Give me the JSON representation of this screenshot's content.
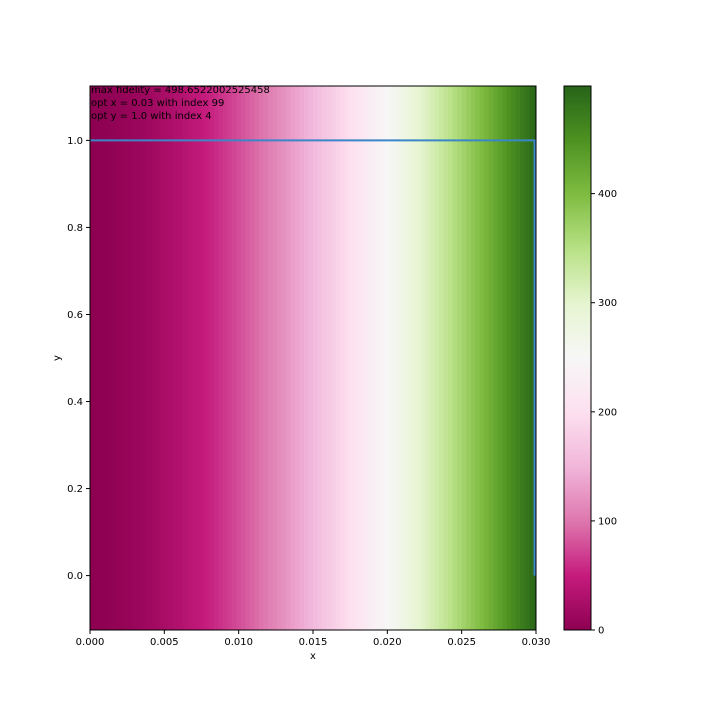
{
  "chart_data": {
    "type": "heatmap",
    "title": "",
    "xlabel": "x",
    "ylabel": "y",
    "xlim": [
      0.0,
      0.03
    ],
    "ylim": [
      -0.125,
      1.125
    ],
    "x_ticks": [
      "0.000",
      "0.005",
      "0.010",
      "0.015",
      "0.020",
      "0.025",
      "0.030"
    ],
    "y_ticks": [
      "0.0",
      "0.2",
      "0.4",
      "0.6",
      "0.8",
      "1.0"
    ],
    "x_tick_values": [
      0.0,
      0.005,
      0.01,
      0.015,
      0.02,
      0.025,
      0.03
    ],
    "y_tick_values": [
      0.0,
      0.2,
      0.4,
      0.6,
      0.8,
      1.0
    ],
    "y_rows": [
      0.0,
      0.25,
      0.5,
      0.75,
      1.0
    ],
    "x_count": 100,
    "x_range": [
      0.0,
      0.03
    ],
    "value_model": "value grows with x, approx 498.65 * (x / 0.03)^1.7",
    "max_value": 498.6522002525458,
    "colormap": "PiYG",
    "colorbar": {
      "range": [
        0,
        498.65
      ],
      "ticks": [
        "0",
        "100",
        "200",
        "300",
        "400"
      ],
      "tick_values": [
        0,
        100,
        200,
        300,
        400
      ]
    },
    "optimum_path": {
      "color": "#3a86c8",
      "points": [
        [
          0.0,
          1.0
        ],
        [
          0.0299,
          1.0
        ],
        [
          0.0299,
          0.0
        ]
      ]
    },
    "annotations": [
      "max fidelity = 498.6522002525458",
      "opt x = 0.03 with index 99",
      "opt y = 1.0 with index 4"
    ]
  }
}
